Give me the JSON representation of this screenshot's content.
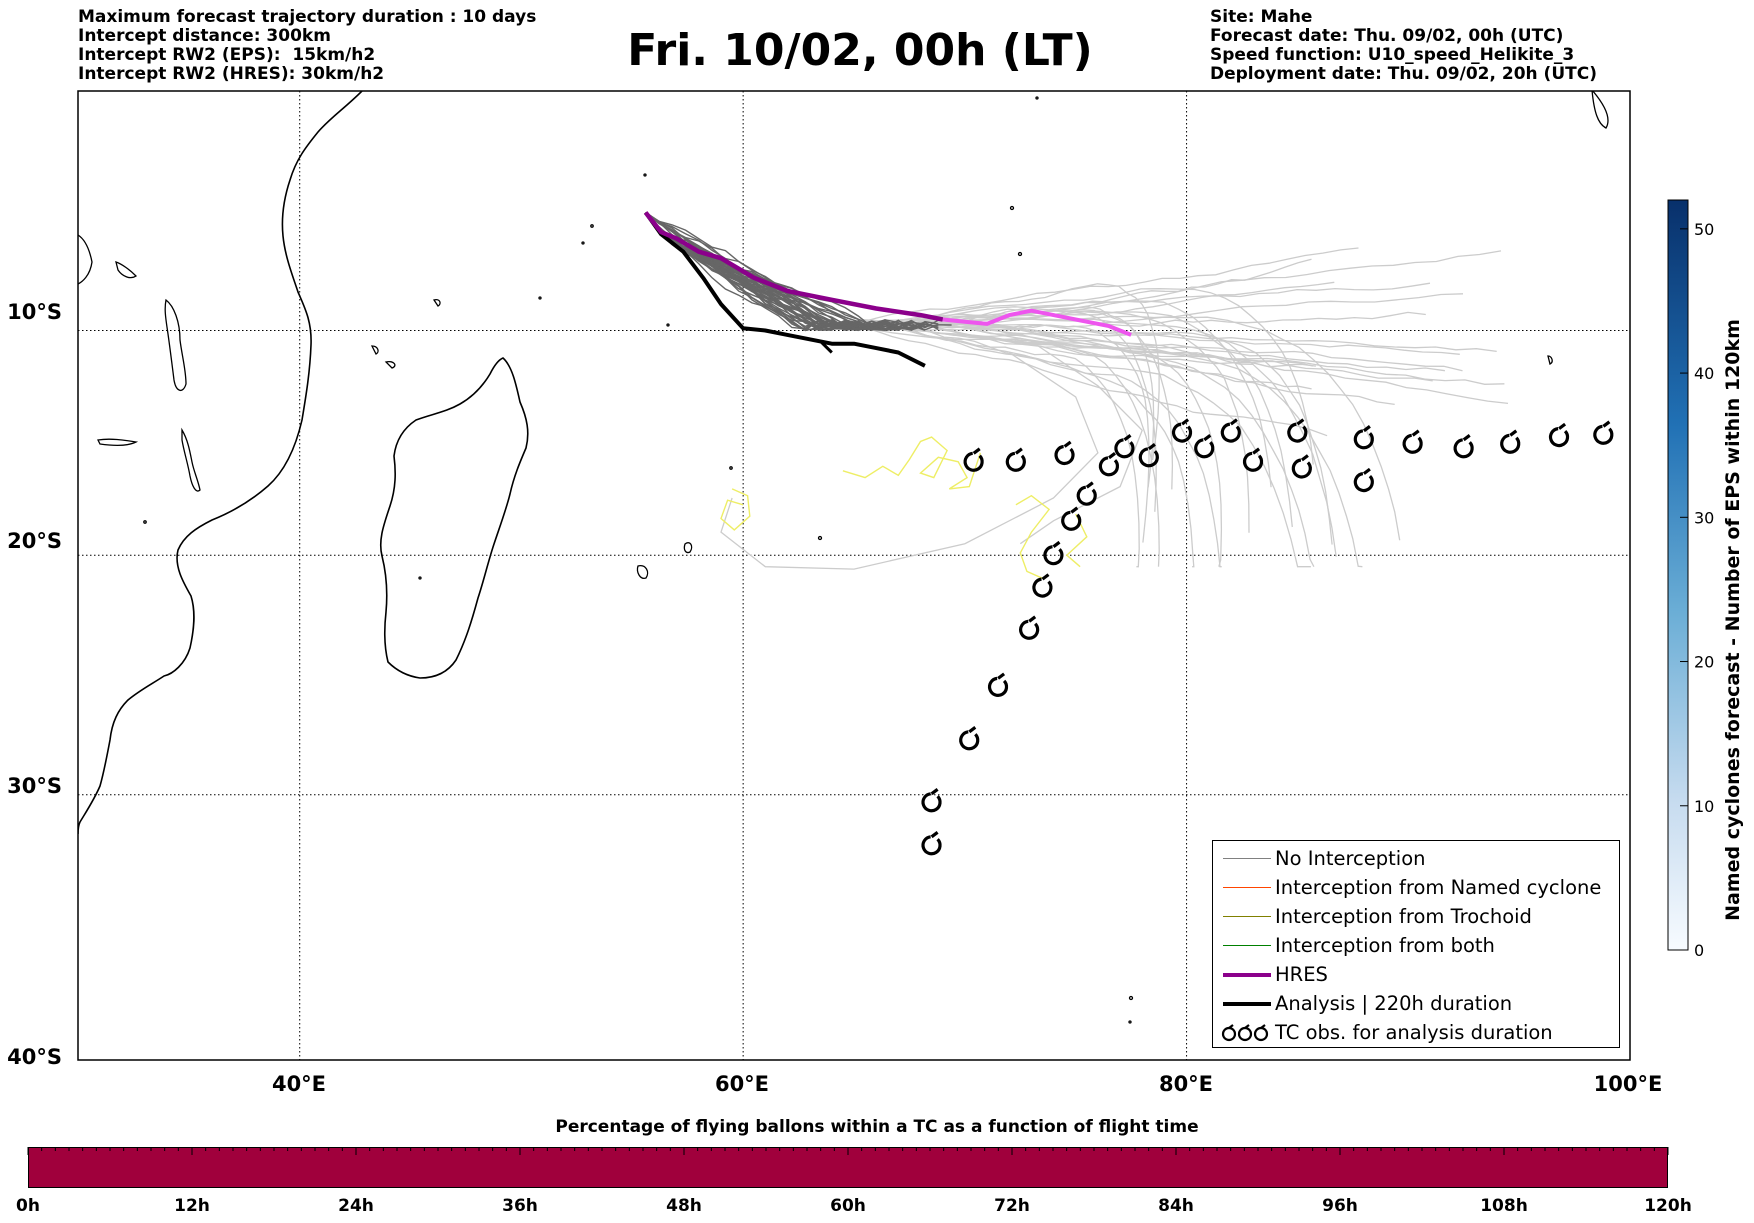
{
  "header_left": [
    "Maximum forecast trajectory duration : 10 days",
    "Intercept distance: 300km",
    "Intercept RW2 (EPS):  15km/h2",
    "Intercept RW2 (HRES): 30km/h2"
  ],
  "header_right": [
    "Site: Mahe",
    "Forecast date: Thu. 09/02, 00h (UTC)",
    "Speed function: U10_speed_Helikite_3",
    "Deployment date: Thu. 09/02, 20h (UTC)"
  ],
  "title": "Fri. 10/02, 00h (LT)",
  "axes": {
    "lon_labels": [
      "40°E",
      "60°E",
      "80°E",
      "100°E"
    ],
    "lon_values": [
      40,
      60,
      80,
      100
    ],
    "lat_labels": [
      "10°S",
      "20°S",
      "30°S",
      "40°S"
    ],
    "lat_values": [
      -10,
      -20,
      -30,
      -40
    ],
    "lon_range": [
      30,
      100
    ],
    "lat_range": [
      -40,
      1
    ],
    "grid": true
  },
  "legend": {
    "items": [
      {
        "label": "No Interception",
        "color": "#808080",
        "style": "thin-line"
      },
      {
        "label": "Interception from Named cyclone",
        "color": "#ff4500",
        "style": "thin-line"
      },
      {
        "label": "Interception from Trochoid",
        "color": "#808000",
        "style": "thin-line"
      },
      {
        "label": "Interception from both",
        "color": "#008000",
        "style": "thin-line"
      },
      {
        "label": "HRES",
        "color": "#8b008b",
        "style": "thick-line"
      },
      {
        "label": "Analysis | 220h duration",
        "color": "#000000",
        "style": "thick-line"
      },
      {
        "label": "TC obs. for analysis duration",
        "color": "#000000",
        "style": "cyclone-icons"
      }
    ]
  },
  "colorbar_right": {
    "title": "Named cyclones forecast - Number of EPS within 120km",
    "ticks": [
      "0",
      "10",
      "20",
      "30",
      "40",
      "50"
    ],
    "range": [
      0,
      52
    ],
    "colormap": "Blues",
    "colors": [
      "#f7fbff",
      "#08306b"
    ]
  },
  "colorbar_bottom": {
    "title": "Percentage of flying ballons within a TC as a function of flight time",
    "ticks": [
      "0h",
      "12h",
      "24h",
      "36h",
      "48h",
      "60h",
      "72h",
      "84h",
      "96h",
      "108h",
      "120h"
    ],
    "fill_color": "#a0003c"
  },
  "trajectories": {
    "hres": {
      "color": "#8b008b",
      "later_color": "#ee55ee",
      "points": [
        [
          55.6,
          -4.6
        ],
        [
          56.3,
          -5.5
        ],
        [
          57,
          -5.8
        ],
        [
          58,
          -6.4
        ],
        [
          59,
          -6.7
        ],
        [
          60.5,
          -7.6
        ],
        [
          62,
          -8.2
        ],
        [
          64,
          -8.6
        ],
        [
          66,
          -9.0
        ],
        [
          68,
          -9.3
        ],
        [
          69,
          -9.5
        ]
      ],
      "later_points": [
        [
          69,
          -9.5
        ],
        [
          70,
          -9.6
        ],
        [
          71,
          -9.7
        ],
        [
          72,
          -9.3
        ],
        [
          73,
          -9.1
        ],
        [
          74,
          -9.3
        ],
        [
          75,
          -9.5
        ],
        [
          76.5,
          -9.8
        ],
        [
          77.5,
          -10.2
        ]
      ]
    },
    "analysis": {
      "color": "#000000",
      "points": [
        [
          55.6,
          -4.6
        ],
        [
          56.3,
          -5.6
        ],
        [
          57.3,
          -6.4
        ],
        [
          58.2,
          -7.6
        ],
        [
          59,
          -8.8
        ],
        [
          60,
          -9.9
        ],
        [
          61,
          -10.0
        ],
        [
          62,
          -10.2
        ],
        [
          63,
          -10.4
        ],
        [
          64,
          -10.6
        ],
        [
          65,
          -10.6
        ],
        [
          66,
          -10.8
        ],
        [
          67,
          -11.0
        ],
        [
          68.2,
          -11.6
        ]
      ]
    },
    "eps_later_color": "#cccccc",
    "eps_early_color": "#666666",
    "trochoid_color": "#eeee66"
  },
  "tc_observations": [
    [
      68.5,
      -30.3
    ],
    [
      68.5,
      -32
    ],
    [
      70.2,
      -27.8
    ],
    [
      71.5,
      -25.6
    ],
    [
      72.9,
      -23.2
    ],
    [
      73.5,
      -21.4
    ],
    [
      74,
      -20.0
    ],
    [
      74.8,
      -18.5
    ],
    [
      75.5,
      -17.4
    ],
    [
      76.5,
      -16.1
    ],
    [
      77.2,
      -15.3
    ],
    [
      78.3,
      -15.7
    ],
    [
      79.8,
      -14.6
    ],
    [
      80.8,
      -15.3
    ],
    [
      82,
      -14.6
    ],
    [
      83,
      -15.9
    ],
    [
      85,
      -14.6
    ],
    [
      85.2,
      -16.2
    ],
    [
      88,
      -14.9
    ],
    [
      88,
      -16.8
    ],
    [
      90.2,
      -15.1
    ],
    [
      92.5,
      -15.3
    ],
    [
      94.6,
      -15.1
    ],
    [
      96.8,
      -14.8
    ],
    [
      98.8,
      -14.7
    ],
    [
      70.4,
      -15.9
    ],
    [
      72.3,
      -15.9
    ],
    [
      74.5,
      -15.6
    ]
  ]
}
